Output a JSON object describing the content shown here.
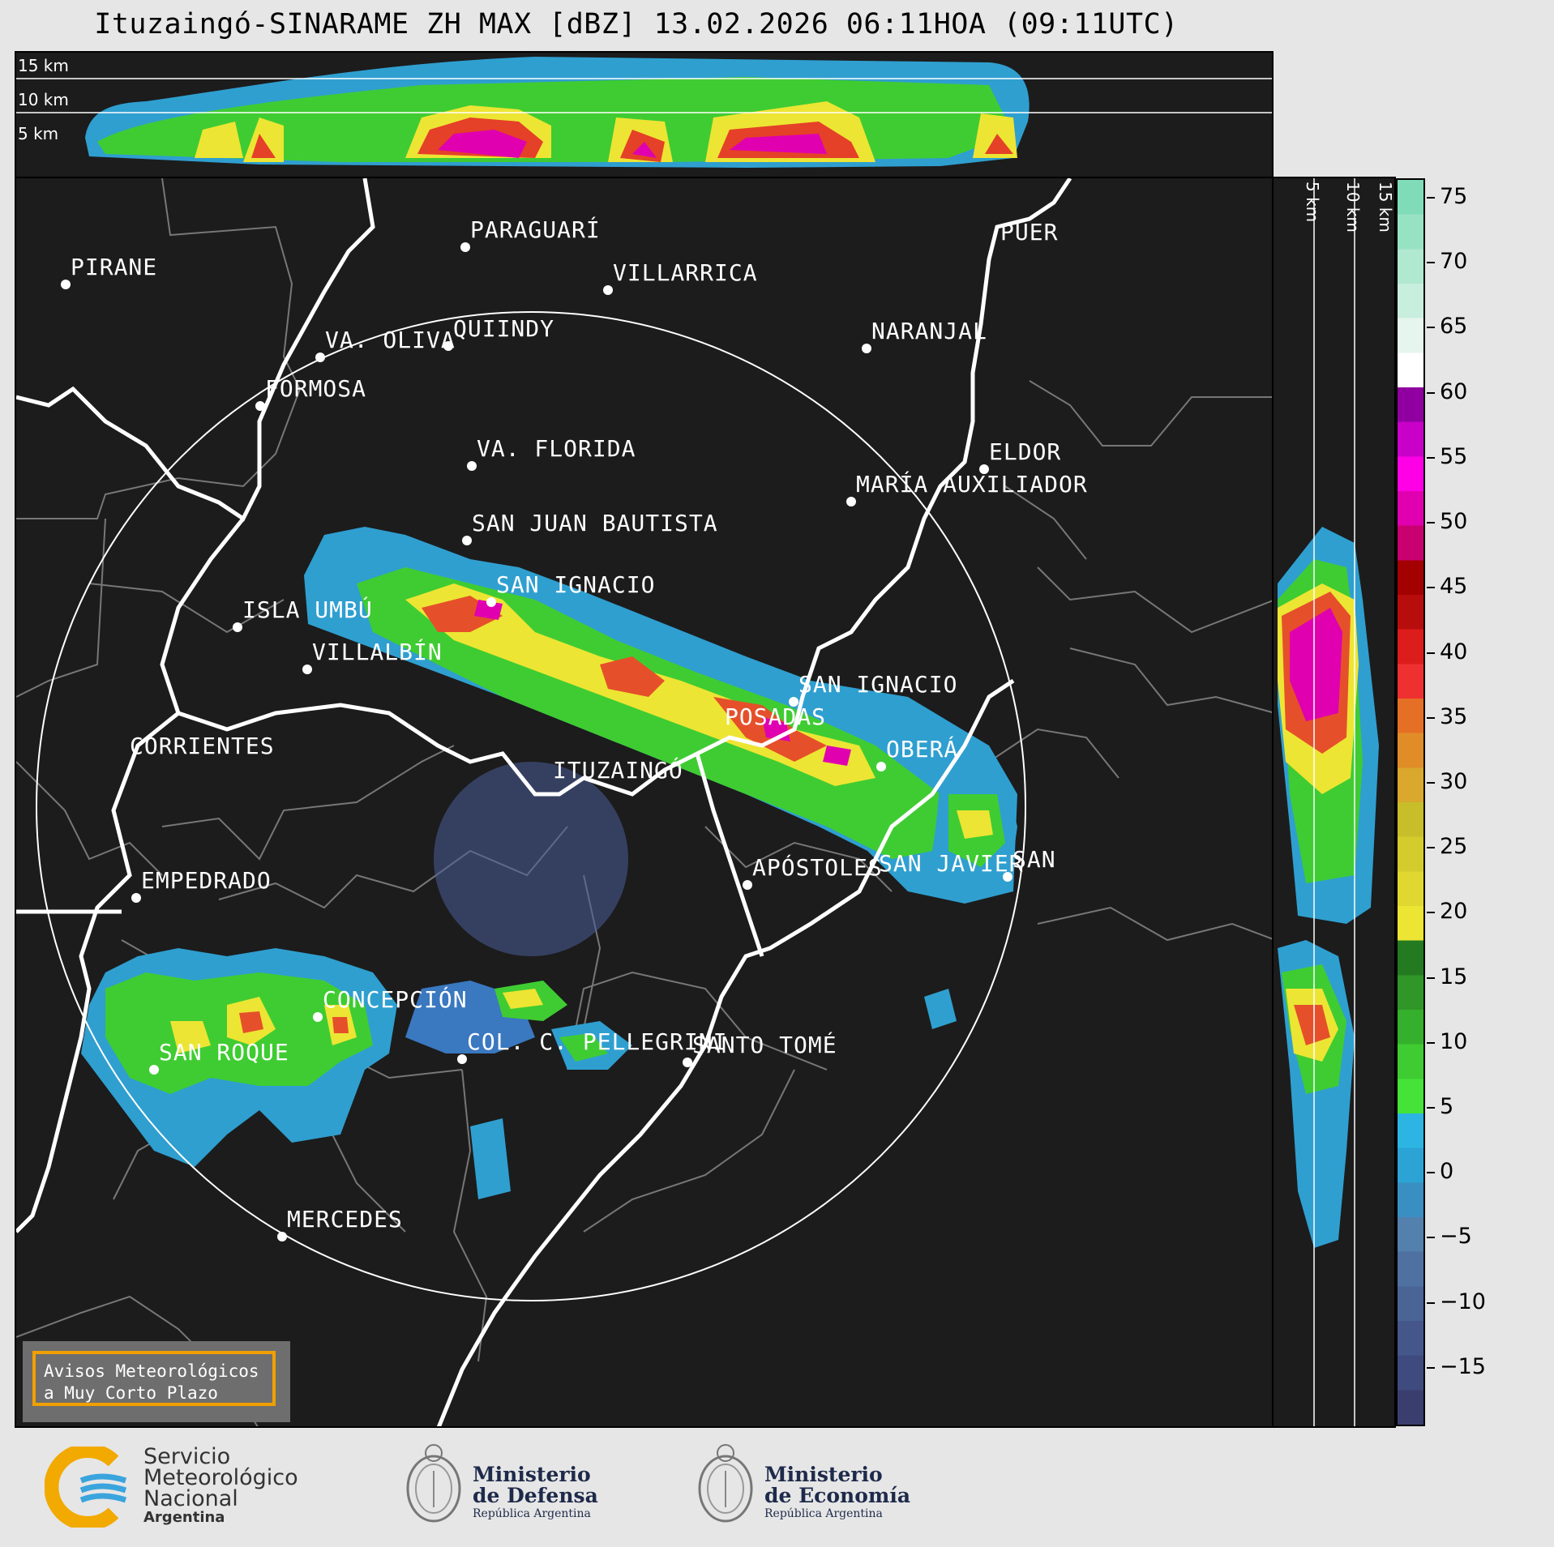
{
  "title": "Ituzaingó-SINARAME ZH MAX [dBZ] 13.02.2026 06:11HOA (09:11UTC)",
  "top_panel": {
    "altitude_labels": [
      "15 km",
      "10 km",
      "5 km"
    ]
  },
  "side_panel": {
    "altitude_labels": [
      "5 km",
      "10 km",
      "15 km"
    ]
  },
  "colorbar": {
    "ticks": [
      "75",
      "70",
      "65",
      "60",
      "55",
      "50",
      "45",
      "40",
      "35",
      "30",
      "25",
      "20",
      "15",
      "10",
      "5",
      "0",
      "−5",
      "−10",
      "−15"
    ],
    "range": [
      -19.5,
      76.5
    ],
    "colors": [
      "#3a3e6e",
      "#3f4a7e",
      "#44568a",
      "#4a6496",
      "#4f71a2",
      "#5380ac",
      "#3a8fc2",
      "#2ba3d4",
      "#2cb5e2",
      "#45e338",
      "#3fcc32",
      "#35b02c",
      "#2f9627",
      "#247a20",
      "#ede533",
      "#e0d830",
      "#d4cb2d",
      "#c8be2a",
      "#d9a82c",
      "#e08d28",
      "#e57025",
      "#ee3030",
      "#dd1c1c",
      "#b80d0d",
      "#a30000",
      "#c80070",
      "#e000b0",
      "#ff00e6",
      "#c800c8",
      "#9000a0",
      "#ffffff",
      "#e6f5ee",
      "#c8eedd",
      "#b0e8d0",
      "#98e2c4",
      "#80dcb8"
    ]
  },
  "cities": [
    {
      "name": "PIRANE"
    },
    {
      "name": "PARAGUARÍ"
    },
    {
      "name": "VILLARRICA"
    },
    {
      "name": "VA. OLIVA"
    },
    {
      "name": "QUIINDY"
    },
    {
      "name": "NARANJAL"
    },
    {
      "name": "PUER"
    },
    {
      "name": "FORMOSA"
    },
    {
      "name": "VA. FLORIDA"
    },
    {
      "name": "ELDOR"
    },
    {
      "name": "MARÍA AUXILIADOR"
    },
    {
      "name": "SAN JUAN BAUTISTA"
    },
    {
      "name": "SAN IGNACIO"
    },
    {
      "name": "ISLA UMBÚ"
    },
    {
      "name": "VILLALBÍN"
    },
    {
      "name": "SAN IGNACIO"
    },
    {
      "name": "POSADAS"
    },
    {
      "name": "CORRIENTES"
    },
    {
      "name": "ITUZAINGÓ"
    },
    {
      "name": "OBERÁ"
    },
    {
      "name": "APÓSTOLES"
    },
    {
      "name": "SAN JAVIER"
    },
    {
      "name": "SAN"
    },
    {
      "name": "EMPEDRADO"
    },
    {
      "name": "CONCEPCIÓN"
    },
    {
      "name": "COL. C. PELLEGRINI"
    },
    {
      "name": "SANTO TOMÉ"
    },
    {
      "name": "SAN ROQUE"
    },
    {
      "name": "MERCEDES"
    }
  ],
  "notice": {
    "line1": "Avisos Meteorológicos",
    "line2": "a Muy Corto Plazo"
  },
  "logos": {
    "smn_line1": "Servicio",
    "smn_line2": "Meteorológico",
    "smn_line3": "Nacional",
    "smn_line4": "Argentina",
    "defensa_line1": "Ministerio",
    "defensa_line2": "de Defensa",
    "defensa_line3": "República Argentina",
    "economia_line1": "Ministerio",
    "economia_line2": "de Economía",
    "economia_line3": "República Argentina"
  }
}
